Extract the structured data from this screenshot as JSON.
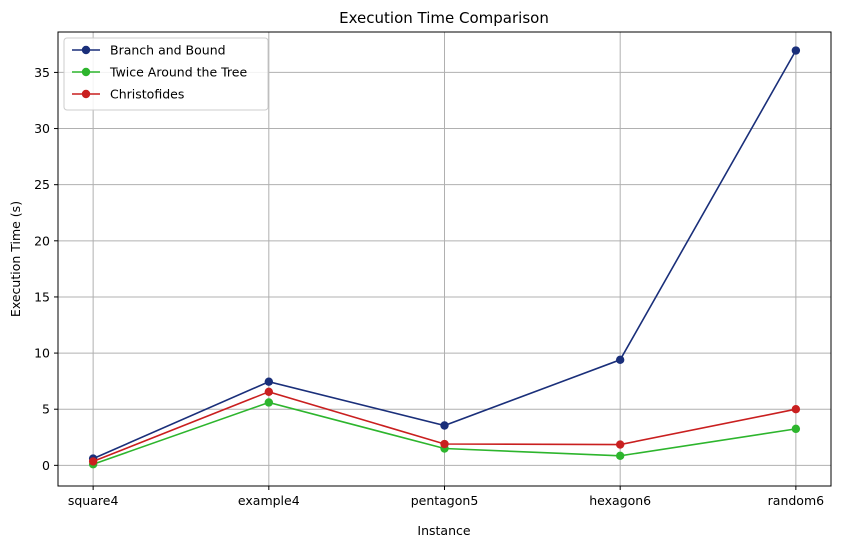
{
  "chart_data": {
    "type": "line",
    "title": "Execution Time Comparison",
    "xlabel": "Instance",
    "ylabel": "Execution Time (s)",
    "categories": [
      "square4",
      "example4",
      "pentagon5",
      "hexagon6",
      "random6"
    ],
    "ylim": [
      -1.84,
      38.6
    ],
    "yticks": [
      0,
      5,
      10,
      15,
      20,
      25,
      30,
      35
    ],
    "grid": true,
    "legend_position": "top-left",
    "series": [
      {
        "name": "Branch and Bound",
        "color": "#1a2f7a",
        "values": [
          0.6,
          7.45,
          3.55,
          9.4,
          36.95
        ]
      },
      {
        "name": "Twice Around the Tree",
        "color": "#2db52d",
        "values": [
          0.1,
          5.6,
          1.5,
          0.85,
          3.25
        ]
      },
      {
        "name": "Christofides",
        "color": "#c91f1f",
        "values": [
          0.35,
          6.55,
          1.9,
          1.85,
          5.0
        ]
      }
    ]
  }
}
